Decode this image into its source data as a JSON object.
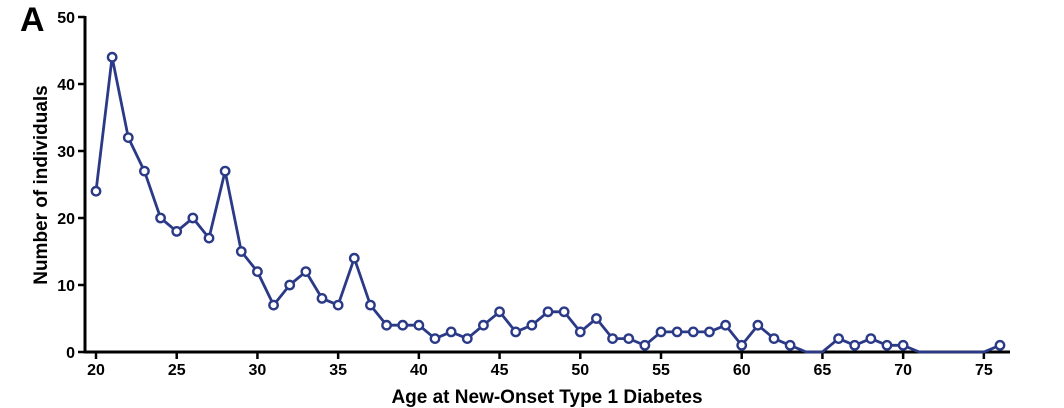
{
  "panel_label": "A",
  "colors": {
    "series": "#2b3a87",
    "axis": "#000000"
  },
  "chart_data": {
    "type": "line",
    "title": "",
    "xlabel": "Age at New-Onset Type 1 Diabetes",
    "ylabel": "Number of individuals",
    "xlim": [
      20,
      76
    ],
    "ylim": [
      0,
      50
    ],
    "xticks": [
      20,
      25,
      30,
      35,
      40,
      45,
      50,
      55,
      60,
      65,
      70,
      75
    ],
    "yticks": [
      0,
      10,
      20,
      30,
      40,
      50
    ],
    "grid": false,
    "legend": "none",
    "series": [
      {
        "x": [
          20,
          21,
          22,
          23,
          24,
          25,
          26,
          27,
          28,
          29,
          30,
          31,
          32,
          33,
          34,
          35,
          36,
          37,
          38,
          39,
          40,
          41,
          42,
          43,
          44,
          45,
          46,
          47,
          48,
          49,
          50,
          51,
          52,
          53,
          54,
          55,
          56,
          57,
          58,
          59,
          60,
          61,
          62,
          63,
          64,
          65,
          66,
          67,
          68,
          69,
          70,
          71,
          72,
          73,
          74,
          75,
          76
        ],
        "y": [
          24,
          44,
          32,
          27,
          20,
          18,
          20,
          17,
          27,
          15,
          12,
          7,
          10,
          12,
          8,
          7,
          14,
          7,
          4,
          4,
          4,
          2,
          3,
          2,
          4,
          6,
          3,
          4,
          6,
          6,
          3,
          5,
          2,
          2,
          1,
          3,
          3,
          3,
          3,
          4,
          1,
          4,
          2,
          1,
          0,
          0,
          2,
          1,
          2,
          1,
          1,
          0,
          0,
          0,
          0,
          0,
          1
        ],
        "markers": [
          true,
          true,
          true,
          true,
          true,
          true,
          true,
          true,
          true,
          true,
          true,
          true,
          true,
          true,
          true,
          true,
          true,
          true,
          true,
          true,
          true,
          true,
          true,
          true,
          true,
          true,
          true,
          true,
          true,
          true,
          true,
          true,
          true,
          true,
          true,
          true,
          true,
          true,
          true,
          true,
          true,
          true,
          true,
          true,
          false,
          false,
          true,
          true,
          true,
          true,
          true,
          false,
          false,
          false,
          false,
          false,
          true
        ]
      }
    ]
  }
}
